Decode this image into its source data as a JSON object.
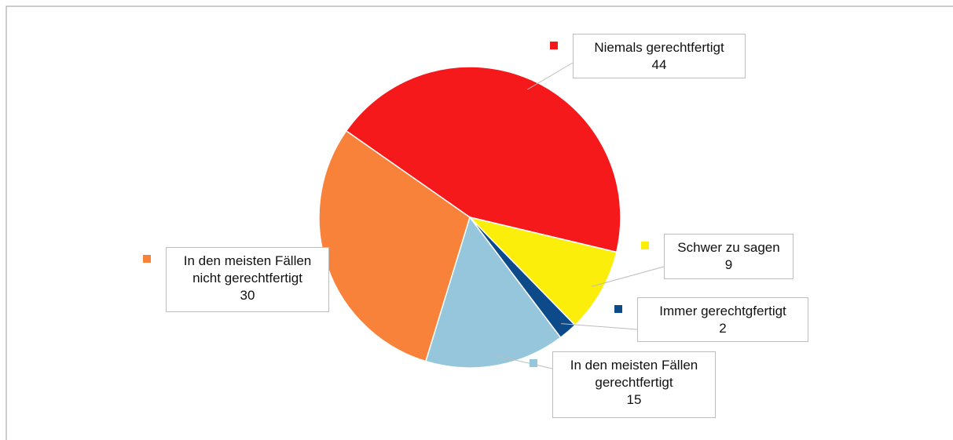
{
  "chart_data": {
    "type": "pie",
    "categories": [
      "Niemals gerechtfertigt",
      "Schwer zu sagen",
      "Immer gerechtgfertigt",
      "In den meisten Fällen gerechtfertigt",
      "In den meisten Fällen nicht gerechtfertigt"
    ],
    "values": [
      44,
      9,
      2,
      15,
      30
    ],
    "colors": [
      "#f5191c",
      "#fbee0a",
      "#0d4a8a",
      "#96c6dc",
      "#f9823a"
    ]
  }
}
